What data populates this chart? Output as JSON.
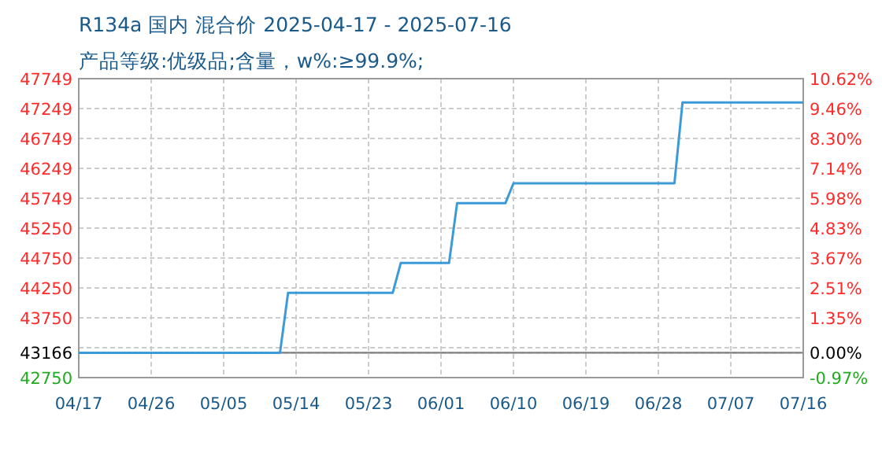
{
  "chart_data": {
    "type": "line",
    "title": "R134a 国内 混合价 2025-04-17 - 2025-07-16",
    "subtitle": "产品等级:优级品;含量，w%:≥99.9%;",
    "series": [
      {
        "color": "#3d9ad9",
        "x": [
          "2025-04-17",
          "2025-05-12",
          "2025-05-13",
          "2025-05-26",
          "2025-05-27",
          "2025-06-02",
          "2025-06-03",
          "2025-06-09",
          "2025-06-10",
          "2025-06-30",
          "2025-07-01",
          "2025-07-16"
        ],
        "values": [
          43166,
          43166,
          44166,
          44166,
          44666,
          44666,
          45666,
          45666,
          46000,
          46000,
          47350,
          47350
        ]
      }
    ],
    "xlim": [
      "2025-04-17",
      "2025-07-16"
    ],
    "xticks": [
      {
        "value": "2025-04-17",
        "label": "04/17"
      },
      {
        "value": "2025-04-26",
        "label": "04/26"
      },
      {
        "value": "2025-05-05",
        "label": "05/05"
      },
      {
        "value": "2025-05-14",
        "label": "05/14"
      },
      {
        "value": "2025-05-23",
        "label": "05/23"
      },
      {
        "value": "2025-06-01",
        "label": "06/01"
      },
      {
        "value": "2025-06-10",
        "label": "06/10"
      },
      {
        "value": "2025-06-19",
        "label": "06/19"
      },
      {
        "value": "2025-06-28",
        "label": "06/28"
      },
      {
        "value": "2025-07-07",
        "label": "07/07"
      },
      {
        "value": "2025-07-16",
        "label": "07/16"
      }
    ],
    "ylim": [
      42750,
      47749
    ],
    "yticks": [
      47749,
      47249,
      46749,
      46249,
      45749,
      45250,
      44750,
      44250,
      43750,
      {
        "value": 43250,
        "label": null
      },
      43166,
      42750
    ],
    "y2lim": [
      -0.97,
      10.62
    ],
    "y2ticks": [
      {
        "value": 10.62,
        "label": "10.62%"
      },
      {
        "value": 9.46,
        "label": "9.46%"
      },
      {
        "value": 8.3,
        "label": "8.30%"
      },
      {
        "value": 7.14,
        "label": "7.14%"
      },
      {
        "value": 5.98,
        "label": "5.98%"
      },
      {
        "value": 4.83,
        "label": "4.83%"
      },
      {
        "value": 3.67,
        "label": "3.67%"
      },
      {
        "value": 2.51,
        "label": "2.51%"
      },
      {
        "value": 1.35,
        "label": "1.35%"
      },
      {
        "value": 0,
        "label": "0.00%"
      },
      {
        "value": -0.97,
        "label": "-0.97%"
      }
    ],
    "ref_lines": [
      {
        "axis": "y",
        "value": 43166,
        "color": "#808080"
      }
    ],
    "grid": true,
    "line_style": "solid",
    "marker": "none"
  }
}
